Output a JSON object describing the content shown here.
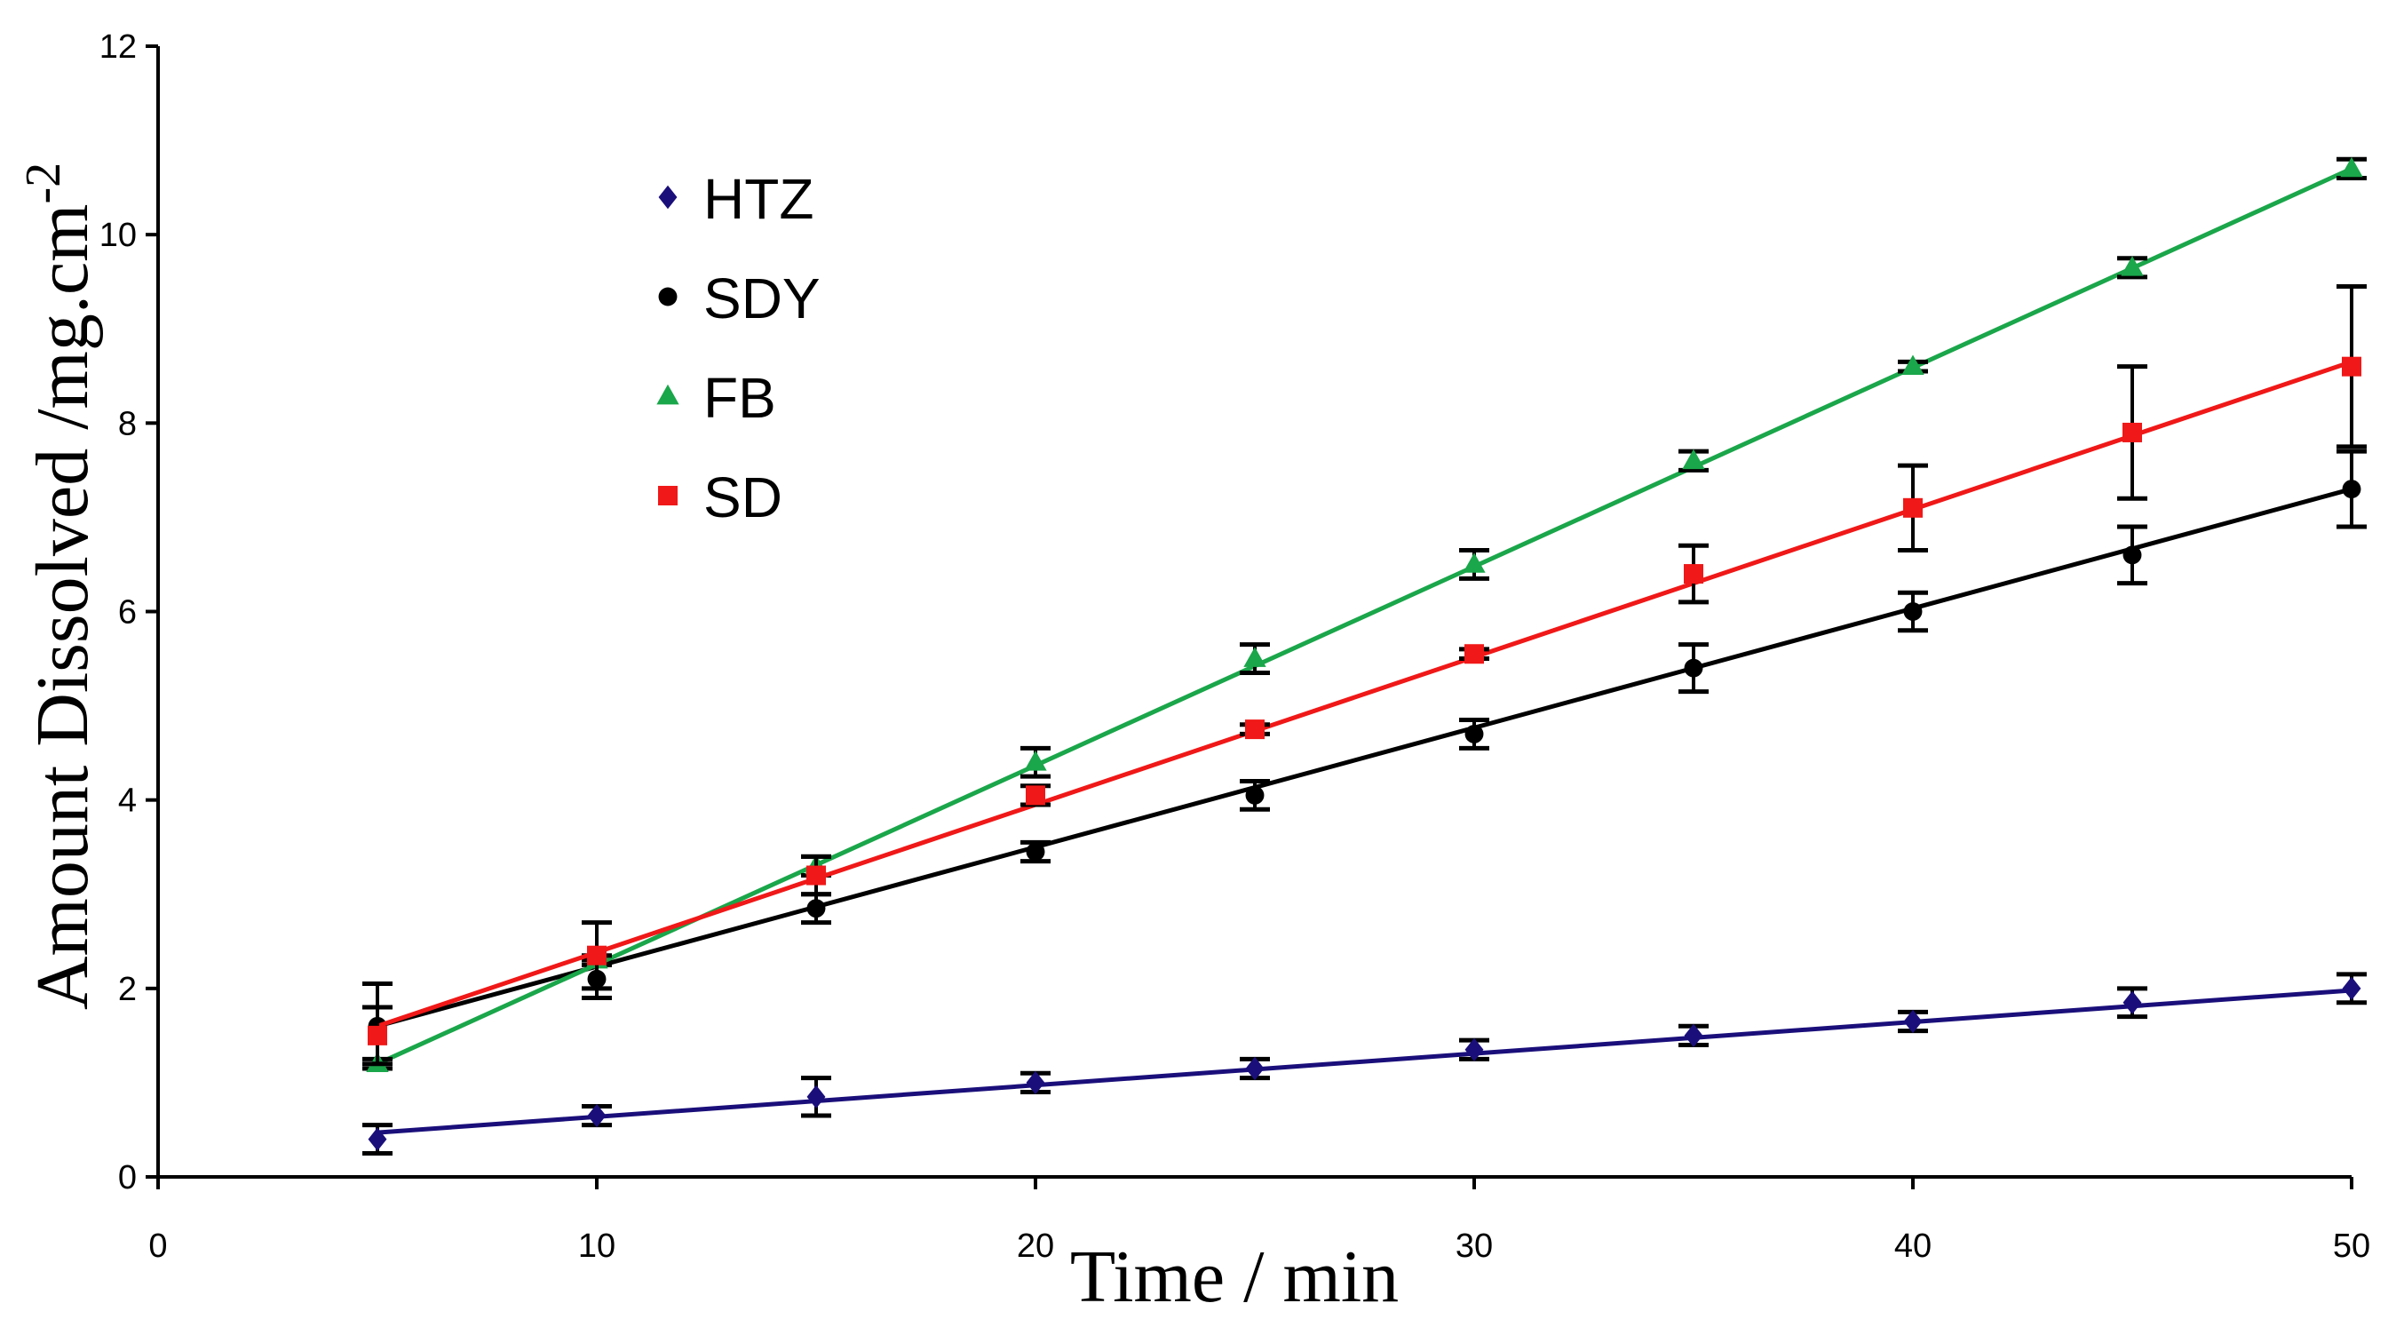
{
  "chart_data": {
    "type": "line",
    "title": "",
    "xlabel": "Time  / min",
    "ylabel": "Amount Dissolved /mg.cm",
    "ylabel_superscript": "-2",
    "xlim": [
      0,
      50
    ],
    "ylim": [
      0,
      12
    ],
    "xticks": [
      0,
      10,
      20,
      30,
      40,
      50
    ],
    "yticks": [
      0,
      2,
      4,
      6,
      8,
      10,
      12
    ],
    "grid": false,
    "legend_position": "top-left",
    "x": [
      5,
      10,
      15,
      20,
      25,
      30,
      35,
      40,
      45,
      50
    ],
    "series": [
      {
        "name": "HTZ",
        "marker": "diamond",
        "color": "#1a0f7a",
        "line_color": "#1a0f7a",
        "values": [
          0.4,
          0.65,
          0.85,
          1.0,
          1.15,
          1.35,
          1.5,
          1.65,
          1.85,
          2.0
        ],
        "errors": [
          0.15,
          0.1,
          0.2,
          0.1,
          0.1,
          0.1,
          0.1,
          0.1,
          0.15,
          0.15
        ],
        "fit": [
          [
            5,
            0.47
          ],
          [
            50,
            1.98
          ]
        ]
      },
      {
        "name": "SDY",
        "marker": "circle",
        "color": "#000000",
        "line_color": "#000000",
        "values": [
          1.6,
          2.1,
          2.85,
          3.45,
          4.05,
          4.7,
          5.4,
          6.0,
          6.6,
          7.3
        ],
        "errors": [
          0.45,
          0.2,
          0.15,
          0.1,
          0.15,
          0.15,
          0.25,
          0.2,
          0.3,
          0.4
        ],
        "fit": [
          [
            5,
            1.6
          ],
          [
            50,
            7.3
          ]
        ]
      },
      {
        "name": "FB",
        "marker": "triangle",
        "color": "#1aa64a",
        "line_color": "#1aa64a",
        "values": [
          1.2,
          2.3,
          3.3,
          4.4,
          5.5,
          6.5,
          7.6,
          8.6,
          9.65,
          10.7
        ],
        "errors": [
          0.05,
          0.05,
          0.1,
          0.15,
          0.15,
          0.15,
          0.1,
          0.05,
          0.1,
          0.1
        ],
        "fit": [
          [
            5,
            1.2
          ],
          [
            50,
            10.7
          ]
        ]
      },
      {
        "name": "SD",
        "marker": "square",
        "color": "#f01818",
        "line_color": "#f01818",
        "values": [
          1.5,
          2.35,
          3.2,
          4.05,
          4.75,
          5.55,
          6.4,
          7.1,
          7.9,
          8.6
        ],
        "errors": [
          0.3,
          0.35,
          0.2,
          0.1,
          0.05,
          0.05,
          0.3,
          0.45,
          0.7,
          0.85
        ],
        "fit": [
          [
            5,
            1.6
          ],
          [
            50,
            8.65
          ]
        ]
      }
    ]
  }
}
